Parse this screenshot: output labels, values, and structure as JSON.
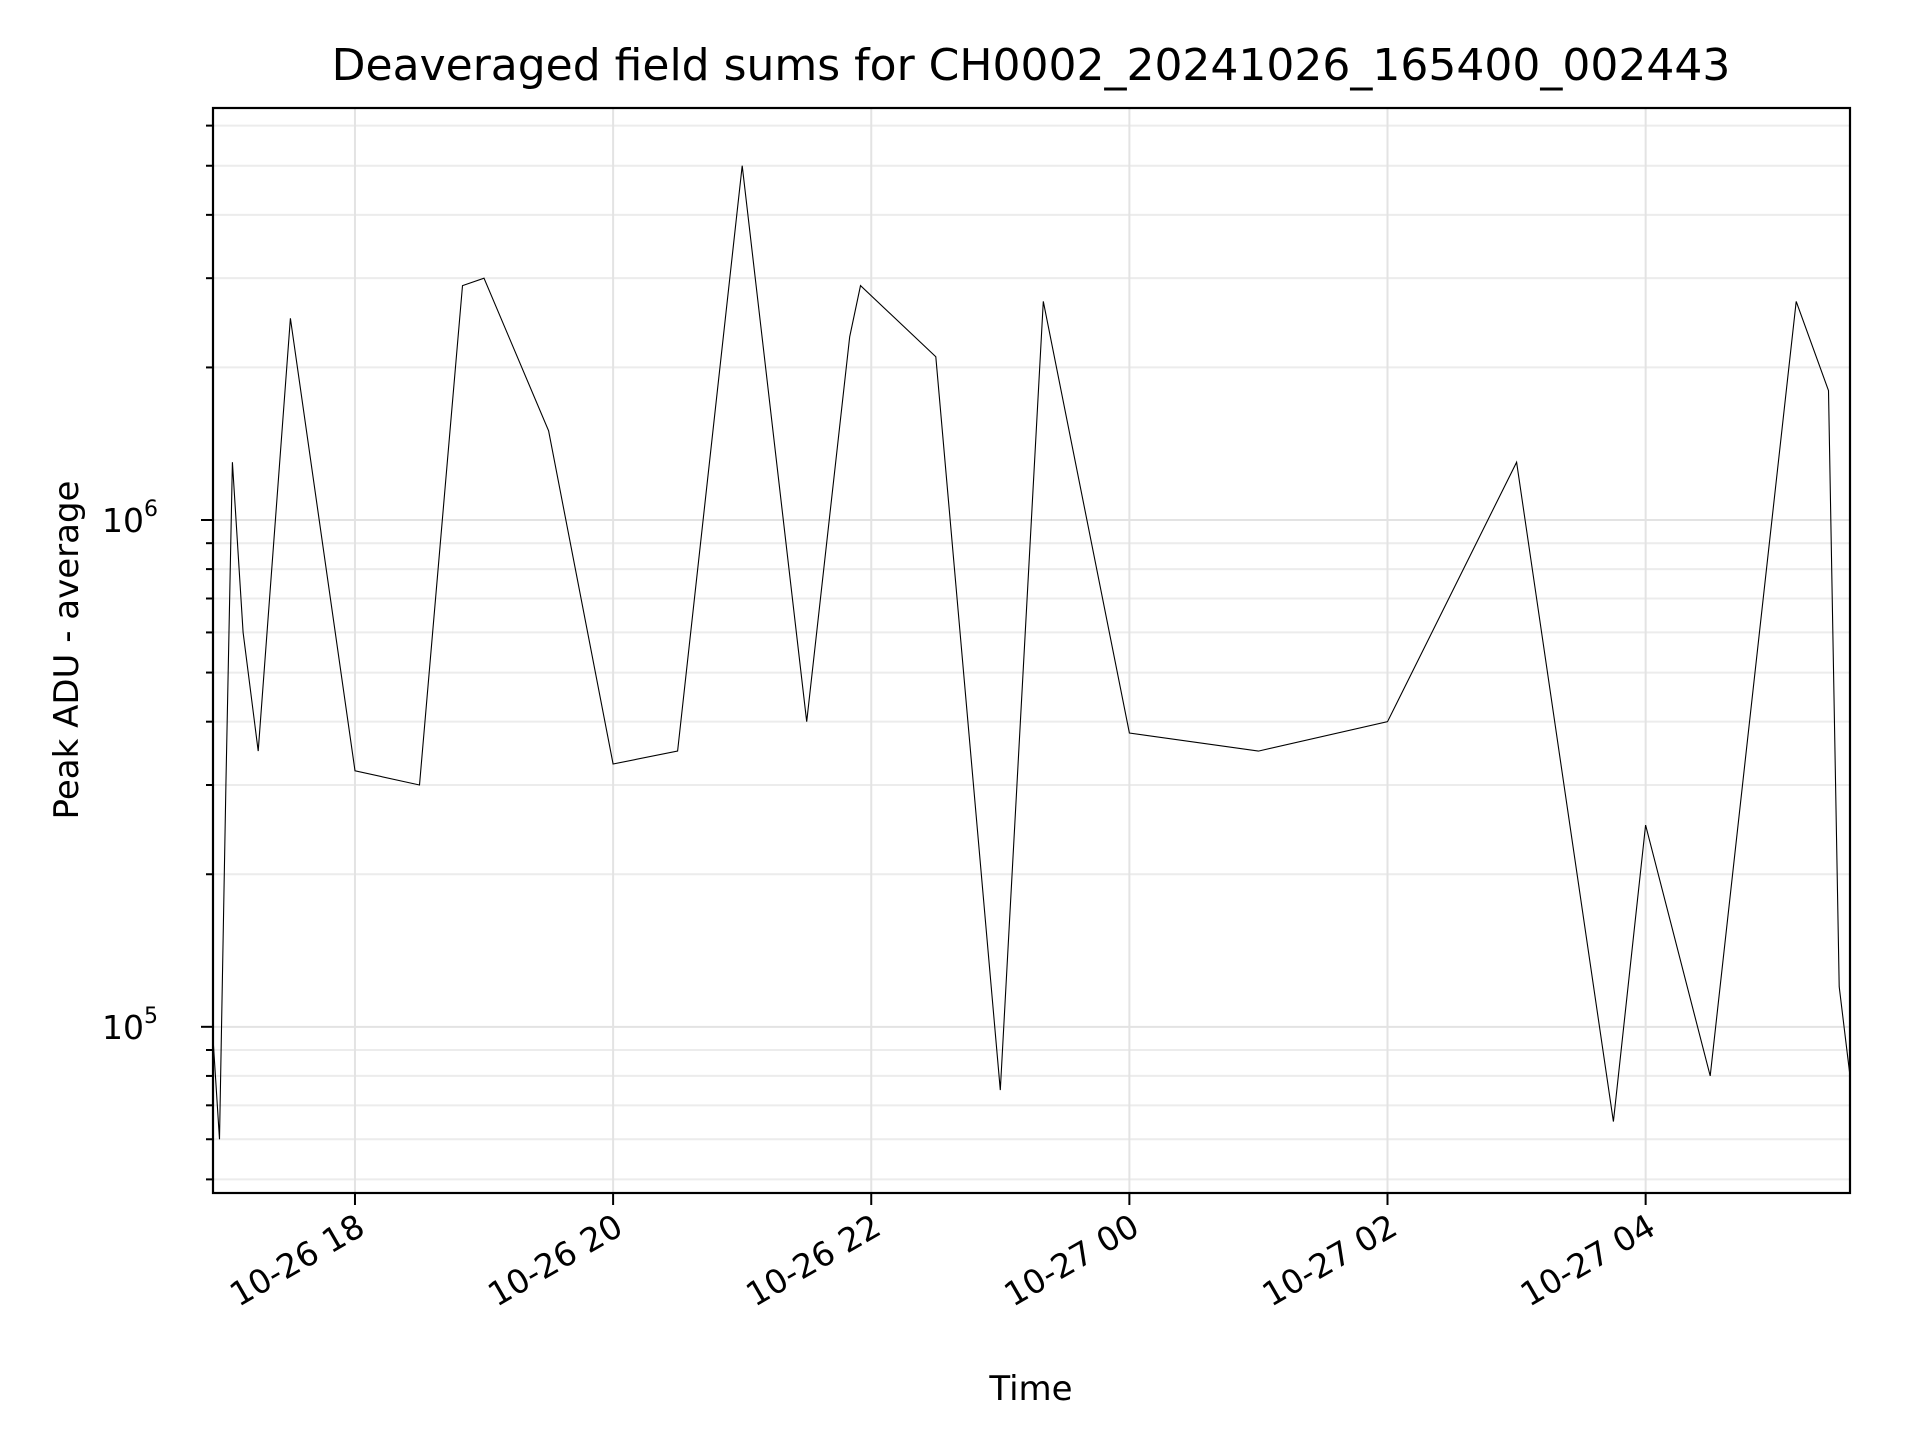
{
  "chart_data": {
    "type": "line",
    "title": "Deaveraged field sums for CH0002_20241026_165400_002443",
    "xlabel": "Time",
    "ylabel": "Peak ADU - average",
    "yscale": "log",
    "ylim": [
      47000,
      6500000
    ],
    "xlim": [
      "2024-10-26 16:54",
      "2024-10-27 05:35"
    ],
    "x_tick_labels": [
      "10-26 18",
      "10-26 20",
      "10-26 22",
      "10-27 00",
      "10-27 02",
      "10-27 04"
    ],
    "x_ticks": [
      "2024-10-26 18:00",
      "2024-10-26 20:00",
      "2024-10-26 22:00",
      "2024-10-27 00:00",
      "2024-10-27 02:00",
      "2024-10-27 04:00"
    ],
    "y_tick_labels": [
      {
        "base": "10",
        "exp": "5",
        "value": 100000
      },
      {
        "base": "10",
        "exp": "6",
        "value": 1000000
      }
    ],
    "grid": true,
    "series": [
      {
        "color": "#000000",
        "points": [
          [
            "2024-10-26 16:54",
            95000
          ],
          [
            "2024-10-26 16:57",
            60000
          ],
          [
            "2024-10-26 17:00",
            300000
          ],
          [
            "2024-10-26 17:03",
            1300000
          ],
          [
            "2024-10-26 17:08",
            600000
          ],
          [
            "2024-10-26 17:15",
            350000
          ],
          [
            "2024-10-26 17:30",
            2500000
          ],
          [
            "2024-10-26 18:00",
            320000
          ],
          [
            "2024-10-26 18:30",
            300000
          ],
          [
            "2024-10-26 18:50",
            2900000
          ],
          [
            "2024-10-26 19:00",
            3000000
          ],
          [
            "2024-10-26 19:30",
            1500000
          ],
          [
            "2024-10-26 20:00",
            330000
          ],
          [
            "2024-10-26 20:30",
            350000
          ],
          [
            "2024-10-26 21:00",
            5000000
          ],
          [
            "2024-10-26 21:30",
            400000
          ],
          [
            "2024-10-26 21:50",
            2300000
          ],
          [
            "2024-10-26 21:55",
            2900000
          ],
          [
            "2024-10-26 22:30",
            2100000
          ],
          [
            "2024-10-26 23:00",
            75000
          ],
          [
            "2024-10-26 23:20",
            2700000
          ],
          [
            "2024-10-27 00:00",
            380000
          ],
          [
            "2024-10-27 01:00",
            350000
          ],
          [
            "2024-10-27 02:00",
            400000
          ],
          [
            "2024-10-27 03:00",
            1300000
          ],
          [
            "2024-10-27 03:45",
            65000
          ],
          [
            "2024-10-27 04:00",
            250000
          ],
          [
            "2024-10-27 04:30",
            80000
          ],
          [
            "2024-10-27 05:10",
            2700000
          ],
          [
            "2024-10-27 05:25",
            1800000
          ],
          [
            "2024-10-27 05:30",
            120000
          ],
          [
            "2024-10-27 05:35",
            80000
          ]
        ]
      }
    ]
  }
}
